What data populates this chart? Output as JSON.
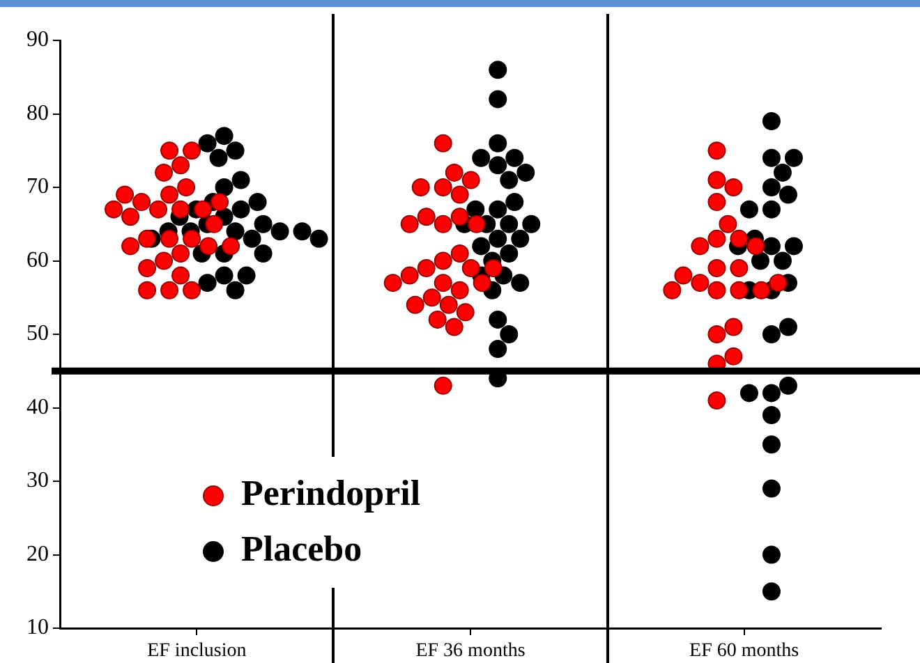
{
  "chart_data": {
    "type": "scatter",
    "categories": [
      "EF inclusion",
      "EF 36 months",
      "EF 60 months"
    ],
    "ylim": [
      10,
      90
    ],
    "yticks": [
      10,
      20,
      30,
      40,
      50,
      60,
      70,
      80,
      90
    ],
    "grid": false,
    "legend": "bottom left",
    "marker": "circle",
    "ref_lines": [
      {
        "axis": "y",
        "value": 45,
        "color": "#000000"
      }
    ],
    "series": [
      {
        "name": "Perindopril",
        "color": "#ff0000",
        "x": [
          "EF inclusion",
          "EF inclusion",
          "EF inclusion",
          "EF inclusion",
          "EF inclusion",
          "EF inclusion",
          "EF inclusion",
          "EF inclusion",
          "EF inclusion",
          "EF inclusion",
          "EF inclusion",
          "EF inclusion",
          "EF inclusion",
          "EF inclusion",
          "EF inclusion",
          "EF inclusion",
          "EF inclusion",
          "EF inclusion",
          "EF inclusion",
          "EF inclusion",
          "EF inclusion",
          "EF inclusion",
          "EF inclusion",
          "EF inclusion",
          "EF inclusion",
          "EF inclusion",
          "EF inclusion",
          "EF inclusion",
          "EF 36 months",
          "EF 36 months",
          "EF 36 months",
          "EF 36 months",
          "EF 36 months",
          "EF 36 months",
          "EF 36 months",
          "EF 36 months",
          "EF 36 months",
          "EF 36 months",
          "EF 36 months",
          "EF 36 months",
          "EF 36 months",
          "EF 36 months",
          "EF 36 months",
          "EF 36 months",
          "EF 36 months",
          "EF 36 months",
          "EF 36 months",
          "EF 36 months",
          "EF 36 months",
          "EF 36 months",
          "EF 36 months",
          "EF 36 months",
          "EF 36 months",
          "EF 36 months",
          "EF 36 months",
          "EF 36 months",
          "EF 60 months",
          "EF 60 months",
          "EF 60 months",
          "EF 60 months",
          "EF 60 months",
          "EF 60 months",
          "EF 60 months",
          "EF 60 months",
          "EF 60 months",
          "EF 60 months",
          "EF 60 months",
          "EF 60 months",
          "EF 60 months",
          "EF 60 months",
          "EF 60 months",
          "EF 60 months",
          "EF 60 months",
          "EF 60 months",
          "EF 60 months",
          "EF 60 months",
          "EF 60 months",
          "EF 60 months",
          "EF 60 months"
        ],
        "values": [
          56,
          69,
          70,
          67,
          67,
          63,
          63,
          63,
          61,
          56,
          75,
          73,
          62,
          62,
          62,
          60,
          56,
          75,
          67,
          68,
          68,
          66,
          72,
          67,
          65,
          69,
          58,
          59,
          43,
          65,
          66,
          70,
          69,
          72,
          76,
          66,
          65,
          65,
          70,
          71,
          60,
          61,
          59,
          57,
          59,
          58,
          59,
          57,
          56,
          55,
          54,
          52,
          53,
          54,
          51,
          57,
          46,
          47,
          41,
          56,
          56,
          57,
          71,
          70,
          68,
          63,
          63,
          59,
          59,
          58,
          56,
          56,
          62,
          65,
          75,
          62,
          57,
          50,
          51
        ]
      },
      {
        "name": "Placebo",
        "color": "#000000",
        "x": [
          "EF inclusion",
          "EF inclusion",
          "EF inclusion",
          "EF inclusion",
          "EF inclusion",
          "EF inclusion",
          "EF inclusion",
          "EF inclusion",
          "EF inclusion",
          "EF inclusion",
          "EF inclusion",
          "EF inclusion",
          "EF inclusion",
          "EF inclusion",
          "EF inclusion",
          "EF inclusion",
          "EF inclusion",
          "EF inclusion",
          "EF inclusion",
          "EF inclusion",
          "EF inclusion",
          "EF inclusion",
          "EF inclusion",
          "EF inclusion",
          "EF inclusion",
          "EF inclusion",
          "EF inclusion",
          "EF inclusion",
          "EF inclusion",
          "EF 36 months",
          "EF 36 months",
          "EF 36 months",
          "EF 36 months",
          "EF 36 months",
          "EF 36 months",
          "EF 36 months",
          "EF 36 months",
          "EF 36 months",
          "EF 36 months",
          "EF 36 months",
          "EF 36 months",
          "EF 36 months",
          "EF 36 months",
          "EF 36 months",
          "EF 36 months",
          "EF 36 months",
          "EF 36 months",
          "EF 36 months",
          "EF 36 months",
          "EF 36 months",
          "EF 36 months",
          "EF 36 months",
          "EF 36 months",
          "EF 36 months",
          "EF 36 months",
          "EF 36 months",
          "EF 36 months",
          "EF 60 months",
          "EF 60 months",
          "EF 60 months",
          "EF 60 months",
          "EF 60 months",
          "EF 60 months",
          "EF 60 months",
          "EF 60 months",
          "EF 60 months",
          "EF 60 months",
          "EF 60 months",
          "EF 60 months",
          "EF 60 months",
          "EF 60 months",
          "EF 60 months",
          "EF 60 months",
          "EF 60 months",
          "EF 60 months",
          "EF 60 months",
          "EF 60 months",
          "EF 60 months",
          "EF 60 months",
          "EF 60 months",
          "EF 60 months",
          "EF 60 months",
          "EF 60 months",
          "EF 60 months"
        ],
        "values": [
          58,
          66,
          64,
          65,
          61,
          77,
          67,
          56,
          63,
          65,
          61,
          61,
          64,
          64,
          64,
          58,
          68,
          66,
          70,
          71,
          64,
          63,
          75,
          74,
          76,
          57,
          67,
          68,
          63,
          86,
          82,
          73,
          71,
          74,
          74,
          76,
          72,
          67,
          68,
          67,
          65,
          65,
          65,
          65,
          63,
          63,
          62,
          61,
          60,
          58,
          58,
          56,
          57,
          52,
          50,
          48,
          44,
          56,
          42,
          74,
          72,
          70,
          67,
          62,
          62,
          57,
          56,
          50,
          43,
          39,
          35,
          15,
          60,
          63,
          74,
          69,
          67,
          62,
          60,
          42,
          29,
          51,
          79,
          20
        ]
      }
    ]
  }
}
